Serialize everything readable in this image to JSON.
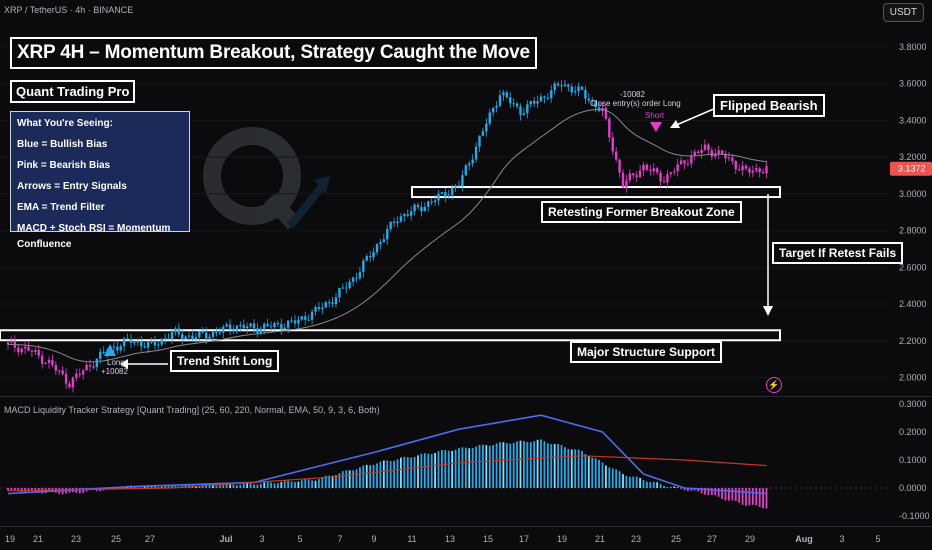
{
  "header": {
    "symbol": "XRP / TetherUS · 4h · BINANCE",
    "currency_button": "USDT"
  },
  "annotations": {
    "title": "XRP 4H – Momentum Breakout, Strategy Caught the Move",
    "brand": "Quant Trading Pro",
    "legend": [
      "What You're Seeing:",
      "Blue = Bullish Bias",
      "Pink = Bearish Bias",
      "Arrows = Entry Signals",
      "EMA = Trend Filter",
      "MACD + Stoch RSI = Momentum Confluence"
    ],
    "flipped_bearish": "Flipped Bearish",
    "retesting": "Retesting Former Breakout Zone",
    "target": "Target If Retest Fails",
    "major_support": "Major Structure Support",
    "trend_shift": "Trend Shift Long",
    "long_signal": "Long",
    "long_pnl": "+10082",
    "close_pnl": "-10082",
    "close_text": "Close entry(s) order Long",
    "short_signal": "Short"
  },
  "indicator": {
    "title": "MACD Liquidity Tracker Strategy [Quant Trading] (25, 60, 220, Normal, EMA, 50, 9, 3, 6, Both)"
  },
  "colors": {
    "bullish": "#29a8e8",
    "bearish": "#e040c8",
    "ema": "#8a8a8a",
    "macd_line": "#4a6cf0",
    "signal_line": "#c0392b",
    "price_tag": "#ef5350"
  },
  "chart_data": [
    {
      "type": "candlestick",
      "title": "XRP 4H – Momentum Breakout, Strategy Caught the Move",
      "x_ticks": [
        "19",
        "21",
        "23",
        "25",
        "27",
        "Jul",
        "3",
        "5",
        "7",
        "9",
        "11",
        "13",
        "15",
        "17",
        "19",
        "21",
        "23",
        "25",
        "27",
        "29",
        "Aug",
        "3",
        "5"
      ],
      "y_ticks": [
        "3.8000",
        "3.6000",
        "3.4000",
        "3.2000",
        "3.0000",
        "2.8000",
        "2.6000",
        "2.4000",
        "2.2000",
        "2.0000"
      ],
      "ylim": [
        1.9,
        3.85
      ],
      "last_price": "3.1372",
      "key_levels": [
        {
          "name": "Retesting Former Breakout Zone",
          "value": 3.01
        },
        {
          "name": "Major Structure Support",
          "value": 2.23
        }
      ],
      "close_points": [
        {
          "day": 0,
          "close": 2.18
        },
        {
          "day": 1,
          "close": 2.15
        },
        {
          "day": 2,
          "close": 2.08
        },
        {
          "day": 3,
          "close": 1.97
        },
        {
          "day": 4,
          "close": 2.07
        },
        {
          "day": 5,
          "close": 2.16
        },
        {
          "day": 6,
          "close": 2.2
        },
        {
          "day": 7,
          "close": 2.17
        },
        {
          "day": 8,
          "close": 2.24
        },
        {
          "day": 9,
          "close": 2.22
        },
        {
          "day": 10,
          "close": 2.24
        },
        {
          "day": 11,
          "close": 2.28
        },
        {
          "day": 12,
          "close": 2.27
        },
        {
          "day": 13,
          "close": 2.28
        },
        {
          "day": 14,
          "close": 2.3
        },
        {
          "day": 15,
          "close": 2.36
        },
        {
          "day": 16,
          "close": 2.44
        },
        {
          "day": 17,
          "close": 2.56
        },
        {
          "day": 18,
          "close": 2.72
        },
        {
          "day": 19,
          "close": 2.87
        },
        {
          "day": 20,
          "close": 2.92
        },
        {
          "day": 21,
          "close": 2.98
        },
        {
          "day": 22,
          "close": 3.05
        },
        {
          "day": 23,
          "close": 3.3
        },
        {
          "day": 24,
          "close": 3.55
        },
        {
          "day": 25,
          "close": 3.45
        },
        {
          "day": 26,
          "close": 3.52
        },
        {
          "day": 27,
          "close": 3.6
        },
        {
          "day": 28,
          "close": 3.55
        },
        {
          "day": 29,
          "close": 3.45
        },
        {
          "day": 30,
          "close": 3.05
        },
        {
          "day": 31,
          "close": 3.15
        },
        {
          "day": 32,
          "close": 3.08
        },
        {
          "day": 33,
          "close": 3.18
        },
        {
          "day": 34,
          "close": 3.25
        },
        {
          "day": 35,
          "close": 3.2
        },
        {
          "day": 36,
          "close": 3.12
        },
        {
          "day": 37,
          "close": 3.14
        }
      ],
      "bearish_ranges": [
        [
          0,
          4
        ],
        [
          29,
          37
        ]
      ]
    },
    {
      "type": "histogram",
      "title": "MACD Liquidity Tracker Strategy [Quant Trading] (25, 60, 220, Normal, EMA, 50, 9, 3, 6, Both)",
      "y_ticks": [
        "0.3000",
        "0.2000",
        "0.1000",
        "0.0000",
        "-0.1000"
      ],
      "ylim": [
        -0.12,
        0.3
      ],
      "histogram": [
        {
          "day": 0,
          "value": -0.01
        },
        {
          "day": 3,
          "value": -0.02
        },
        {
          "day": 6,
          "value": 0.005
        },
        {
          "day": 9,
          "value": 0.01
        },
        {
          "day": 12,
          "value": 0.015
        },
        {
          "day": 15,
          "value": 0.03
        },
        {
          "day": 18,
          "value": 0.09
        },
        {
          "day": 21,
          "value": 0.13
        },
        {
          "day": 24,
          "value": 0.16
        },
        {
          "day": 26,
          "value": 0.17
        },
        {
          "day": 28,
          "value": 0.13
        },
        {
          "day": 30,
          "value": 0.05
        },
        {
          "day": 32,
          "value": 0.01
        },
        {
          "day": 34,
          "value": -0.02
        },
        {
          "day": 36,
          "value": -0.06
        },
        {
          "day": 37,
          "value": -0.07
        }
      ],
      "macd_line": [
        {
          "day": 0,
          "value": -0.02
        },
        {
          "day": 6,
          "value": 0.005
        },
        {
          "day": 12,
          "value": 0.02
        },
        {
          "day": 18,
          "value": 0.13
        },
        {
          "day": 22,
          "value": 0.21
        },
        {
          "day": 26,
          "value": 0.26
        },
        {
          "day": 29,
          "value": 0.2
        },
        {
          "day": 31,
          "value": 0.05
        },
        {
          "day": 33,
          "value": 0.0
        },
        {
          "day": 37,
          "value": -0.02
        }
      ],
      "signal_line": [
        {
          "day": 0,
          "value": -0.01
        },
        {
          "day": 8,
          "value": 0.0
        },
        {
          "day": 16,
          "value": 0.04
        },
        {
          "day": 22,
          "value": 0.09
        },
        {
          "day": 28,
          "value": 0.115
        },
        {
          "day": 33,
          "value": 0.1
        },
        {
          "day": 37,
          "value": 0.08
        }
      ]
    }
  ]
}
